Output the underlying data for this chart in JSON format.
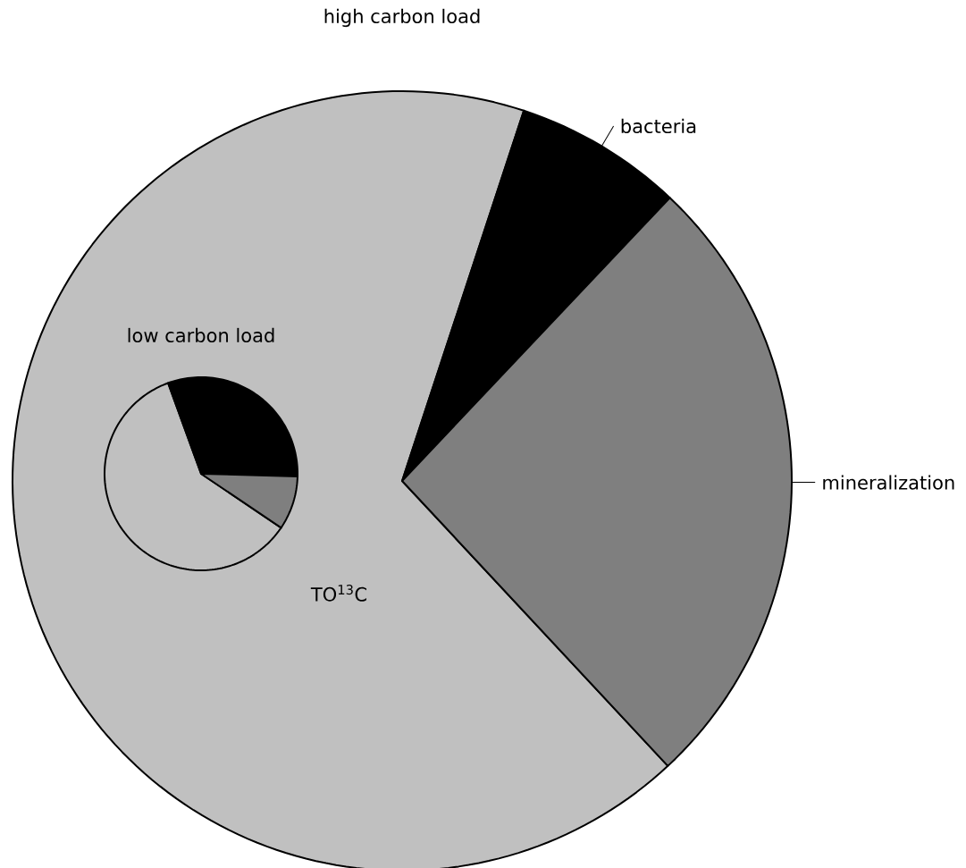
{
  "chart_data": [
    {
      "type": "pie",
      "title": "high carbon load",
      "categories": [
        "TO$^{13}$C",
        "bacteria",
        "mineralization"
      ],
      "values": [
        67,
        7,
        26
      ],
      "colors": [
        "#c0c0c0",
        "#000000",
        "#7f7f7f"
      ]
    },
    {
      "type": "pie",
      "title": "low carbon load",
      "categories": [
        null,
        null,
        null
      ],
      "values": [
        60,
        31,
        9
      ],
      "colors": [
        "#c0c0c0",
        "#000000",
        "#7f7f7f"
      ]
    }
  ]
}
